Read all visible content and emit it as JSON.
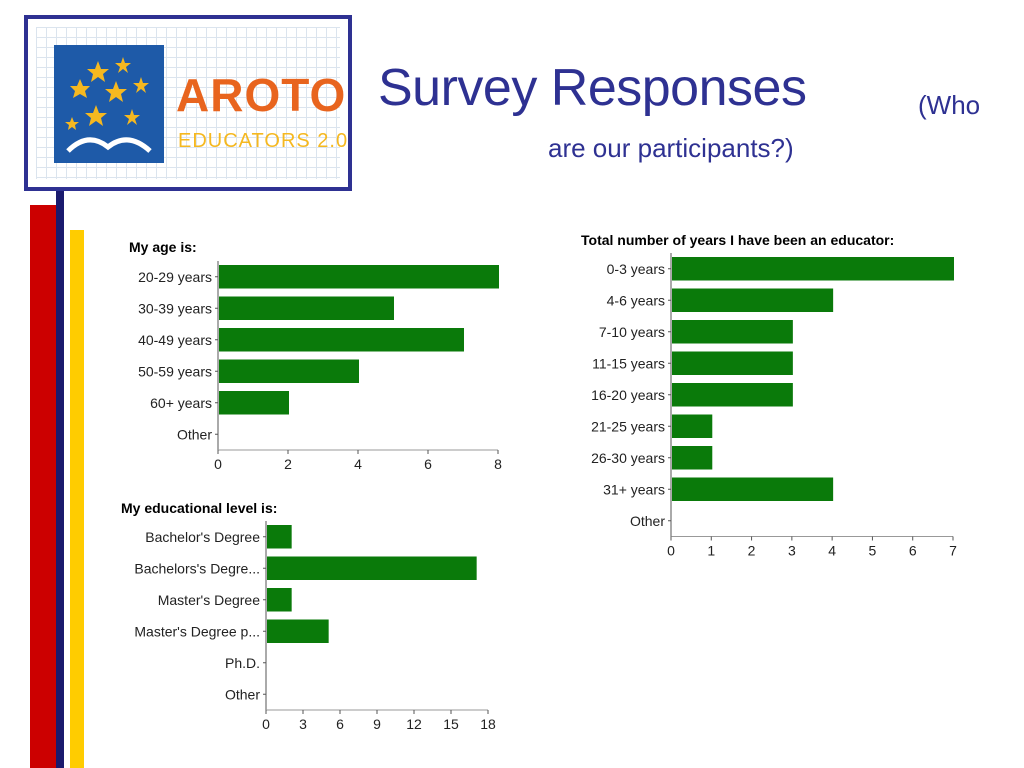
{
  "slide": {
    "title": "Survey Responses",
    "subtitle_line1": "(Who",
    "subtitle_line2": "are our participants?)"
  },
  "logo": {
    "name_top": "AROTO",
    "name_bottom": "EDUCATORS 2.0"
  },
  "colors": {
    "bar": "#0a7a0a",
    "title": "#2e3192",
    "stripe_red": "#cc0000",
    "stripe_navy": "#1a1a6e",
    "stripe_yellow": "#ffcc00",
    "logo_blue": "#1e5aa8",
    "logo_orange": "#e8641e",
    "logo_yellow": "#f5b820"
  },
  "chart_data": [
    {
      "type": "bar",
      "orientation": "horizontal",
      "title": "My age is:",
      "categories": [
        "20-29 years",
        "30-39 years",
        "40-49 years",
        "50-59 years",
        "60+ years",
        "Other"
      ],
      "values": [
        8,
        5,
        7,
        4,
        2,
        0
      ],
      "xlim": [
        0,
        8
      ],
      "xticks": [
        0,
        2,
        4,
        6,
        8
      ]
    },
    {
      "type": "bar",
      "orientation": "horizontal",
      "title": "Total number of years I have been an educator:",
      "categories": [
        "0-3 years",
        "4-6 years",
        "7-10 years",
        "11-15 years",
        "16-20 years",
        "21-25 years",
        "26-30 years",
        "31+ years",
        "Other"
      ],
      "values": [
        7,
        4,
        3,
        3,
        3,
        1,
        1,
        4,
        0
      ],
      "xlim": [
        0,
        7
      ],
      "xticks": [
        0,
        1,
        2,
        3,
        4,
        5,
        6,
        7
      ]
    },
    {
      "type": "bar",
      "orientation": "horizontal",
      "title": "My educational level is:",
      "categories": [
        "Bachelor's Degree",
        "Bachelors's Degre...",
        "Master's Degree",
        "Master's Degree p...",
        "Ph.D.",
        "Other"
      ],
      "values": [
        2,
        17,
        2,
        5,
        0,
        0
      ],
      "xlim": [
        0,
        18
      ],
      "xticks": [
        0,
        3,
        6,
        9,
        12,
        15,
        18
      ]
    }
  ]
}
